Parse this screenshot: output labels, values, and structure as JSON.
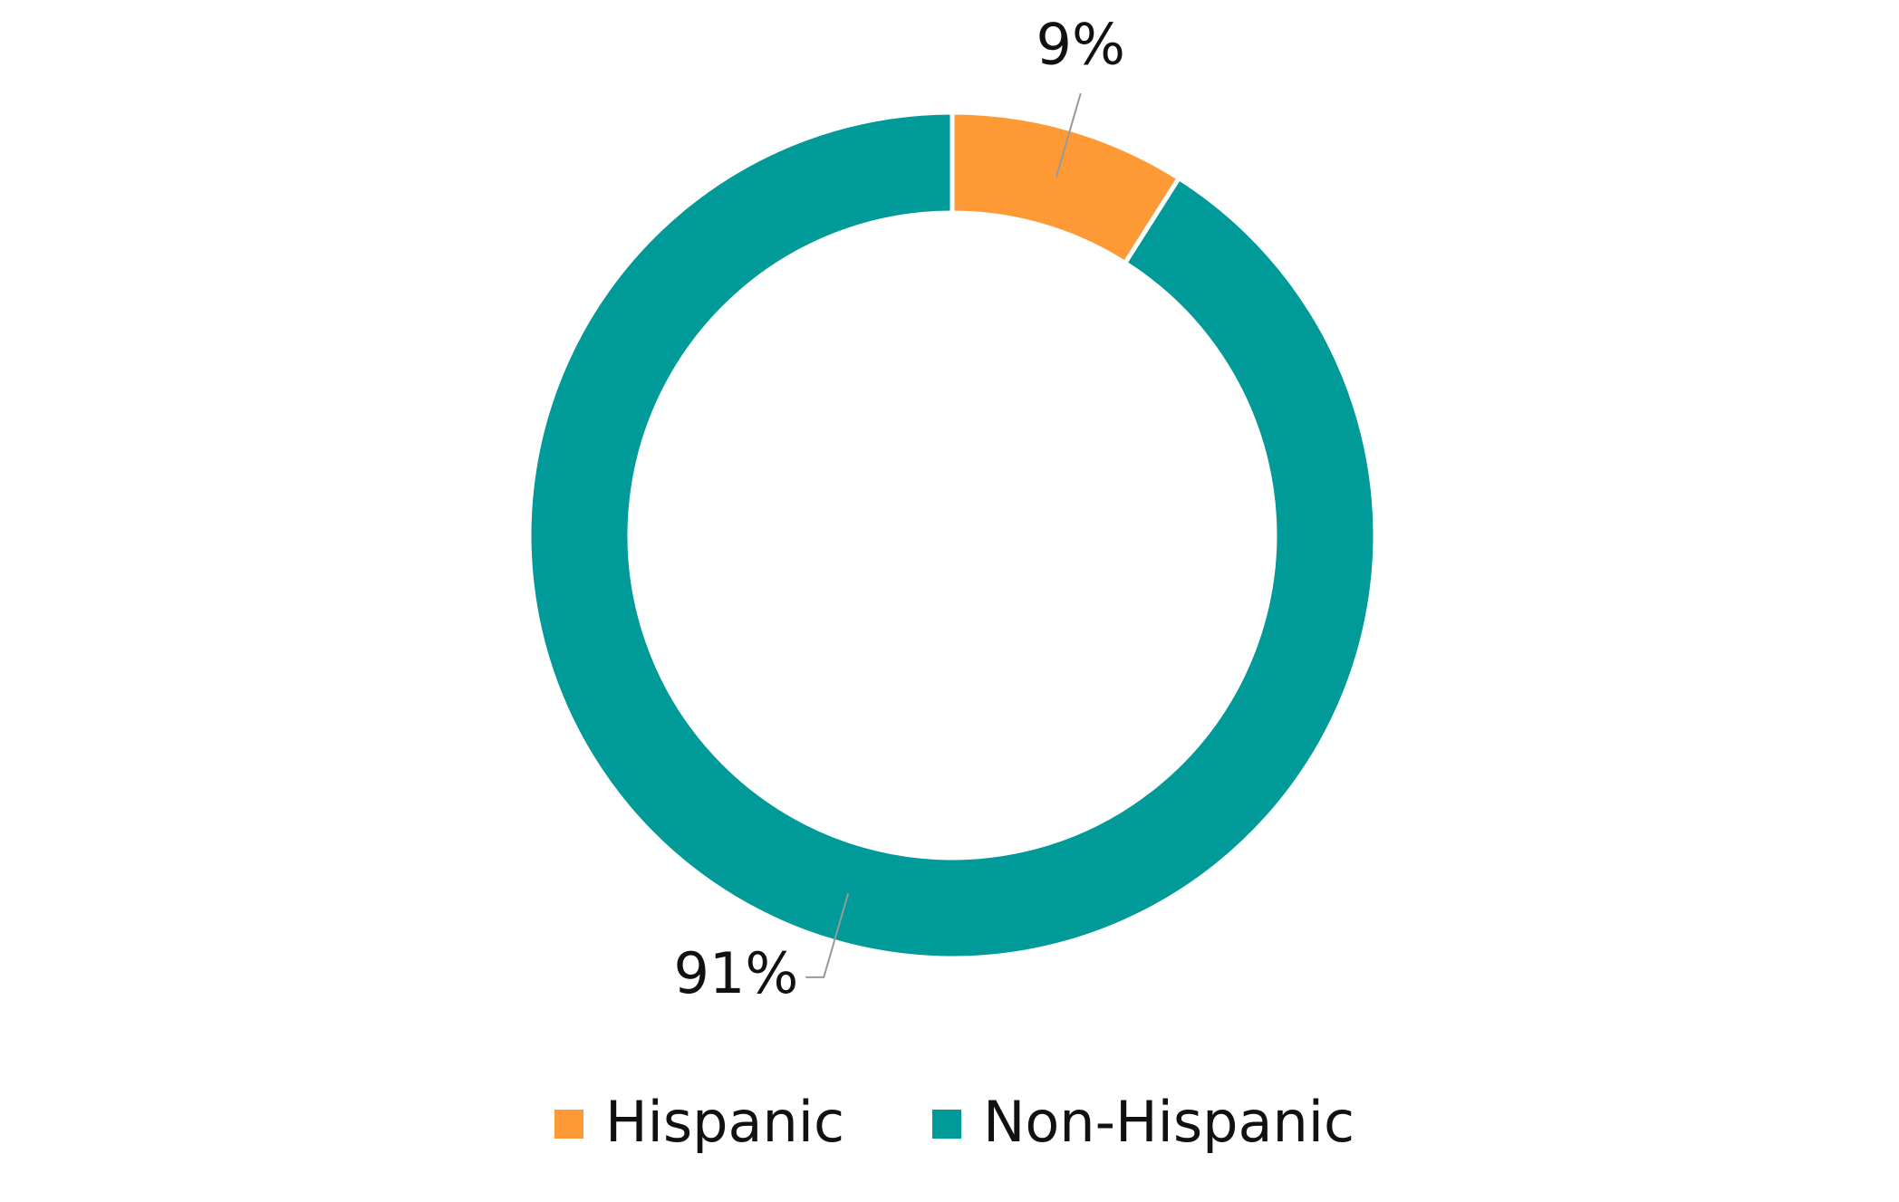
{
  "chart_data": {
    "type": "donut",
    "categories": [
      "Hispanic",
      "Non-Hispanic"
    ],
    "values": [
      9,
      91
    ],
    "value_labels": [
      "9%",
      "91%"
    ],
    "colors": [
      "#fe9a36",
      "#009a99"
    ],
    "legend": "bottom"
  }
}
